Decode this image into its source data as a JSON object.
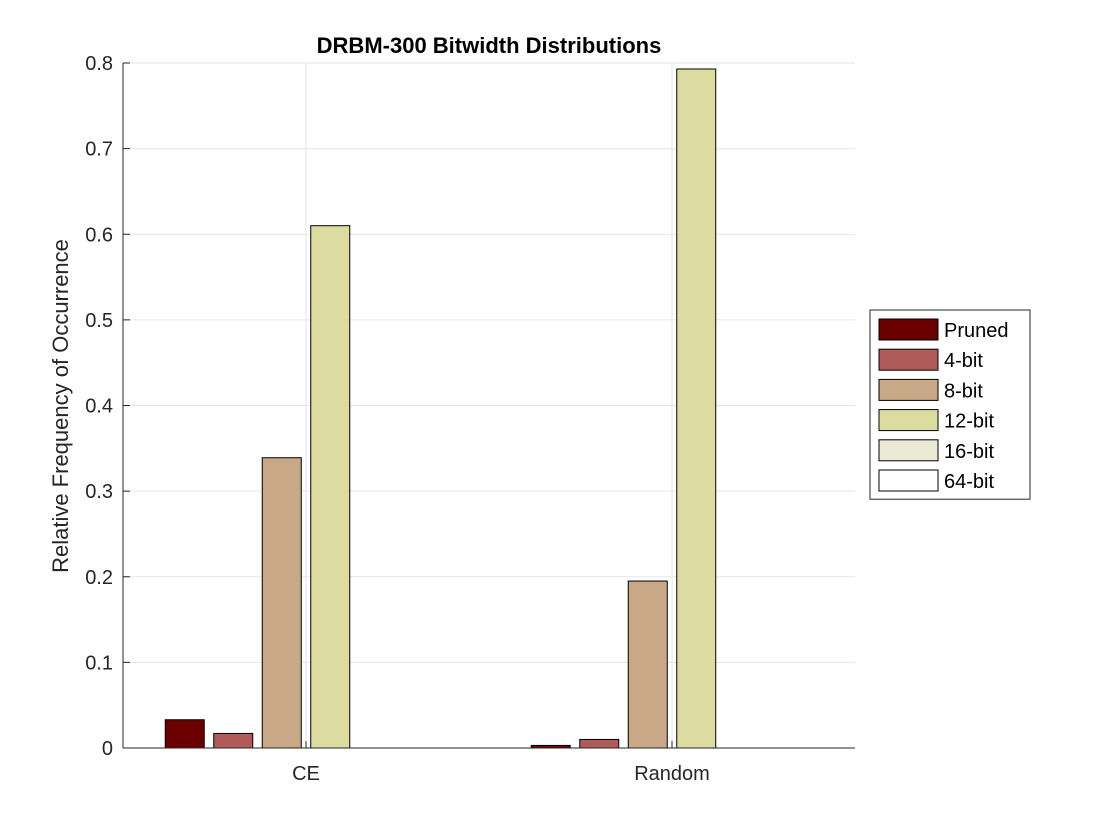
{
  "chart_data": {
    "type": "bar",
    "title": "DRBM-300 Bitwidth Distributions",
    "xlabel": "",
    "ylabel": "Relative Frequency of Occurrence",
    "categories": [
      "CE",
      "Random"
    ],
    "ylim": [
      0,
      0.8
    ],
    "yticks": [
      "0",
      "0.1",
      "0.2",
      "0.3",
      "0.4",
      "0.5",
      "0.6",
      "0.7",
      "0.8"
    ],
    "grid": true,
    "legend_position": "right",
    "series": [
      {
        "name": "Pruned",
        "color": "#6b0000",
        "values": [
          0.033,
          0.003
        ]
      },
      {
        "name": "4-bit",
        "color": "#b05a5a",
        "values": [
          0.017,
          0.01
        ]
      },
      {
        "name": "8-bit",
        "color": "#c8a887",
        "values": [
          0.339,
          0.195
        ]
      },
      {
        "name": "12-bit",
        "color": "#dcdba0",
        "values": [
          0.61,
          0.793
        ]
      },
      {
        "name": "16-bit",
        "color": "#eaead4",
        "values": [
          0,
          0
        ]
      },
      {
        "name": "64-bit",
        "color": "#ffffff",
        "values": [
          0,
          0
        ]
      }
    ]
  }
}
